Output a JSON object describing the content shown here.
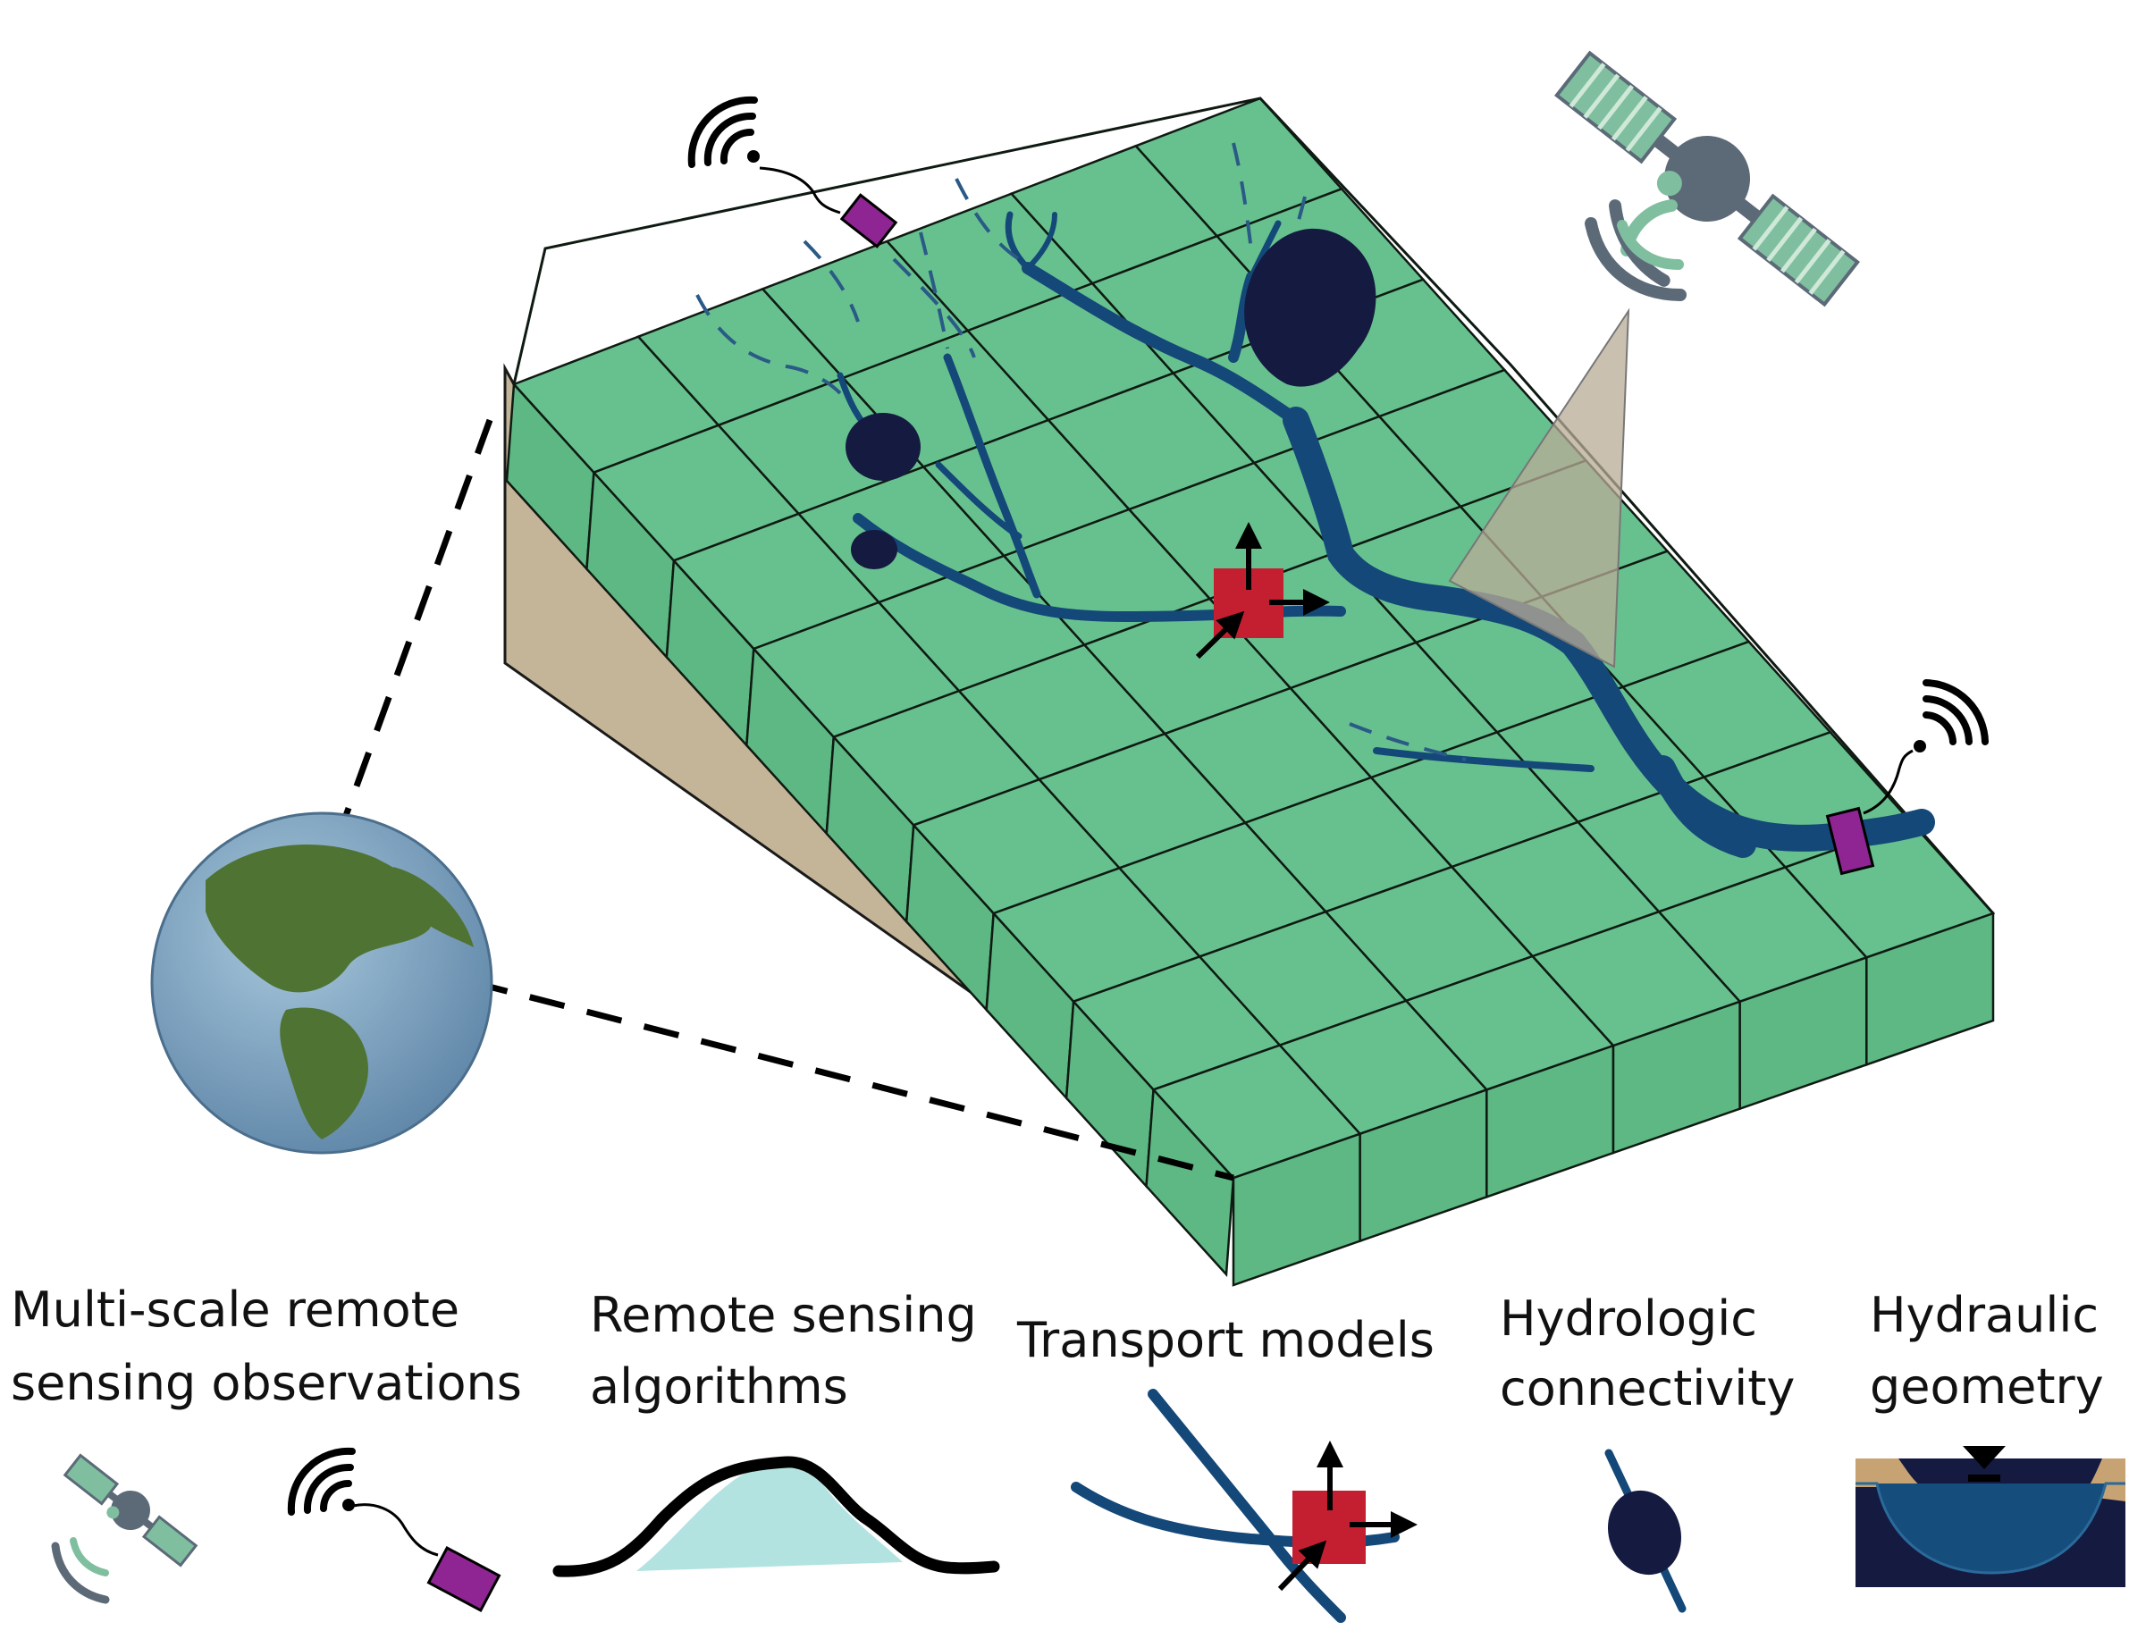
{
  "legend": [
    {
      "id": "multi-scale",
      "line1": "Multi-scale remote",
      "line2": "sensing observations"
    },
    {
      "id": "algorithms",
      "line1": "Remote sensing",
      "line2": "algorithms"
    },
    {
      "id": "transport",
      "line1": "Transport models",
      "line2": ""
    },
    {
      "id": "connectivity",
      "line1": "Hydrologic",
      "line2": "connectivity"
    },
    {
      "id": "geometry",
      "line1": "Hydraulic",
      "line2": "geometry"
    }
  ],
  "grid": {
    "rows": 9,
    "cols": 6
  },
  "icons": [
    "globe-icon",
    "satellite-icon",
    "ground-sensor-icon",
    "signal-waves-icon",
    "river-network-icon",
    "control-volume-icon",
    "lake-node-icon",
    "channel-cross-section-icon",
    "water-level-marker-icon"
  ],
  "colors": {
    "cell_top": "#67c18f",
    "cell_front": "#5db884",
    "soil": "#c4b598",
    "river": "#144878",
    "lake": "#151a40",
    "sensor": "#8f2593",
    "control_volume": "#c41f30",
    "satellite_panel": "#7fbf9f",
    "satellite_body": "#5c6a78",
    "hydrograph_fill": "#b3e3e0",
    "water_surface": "#154d7c",
    "bank": "#c7a374"
  }
}
